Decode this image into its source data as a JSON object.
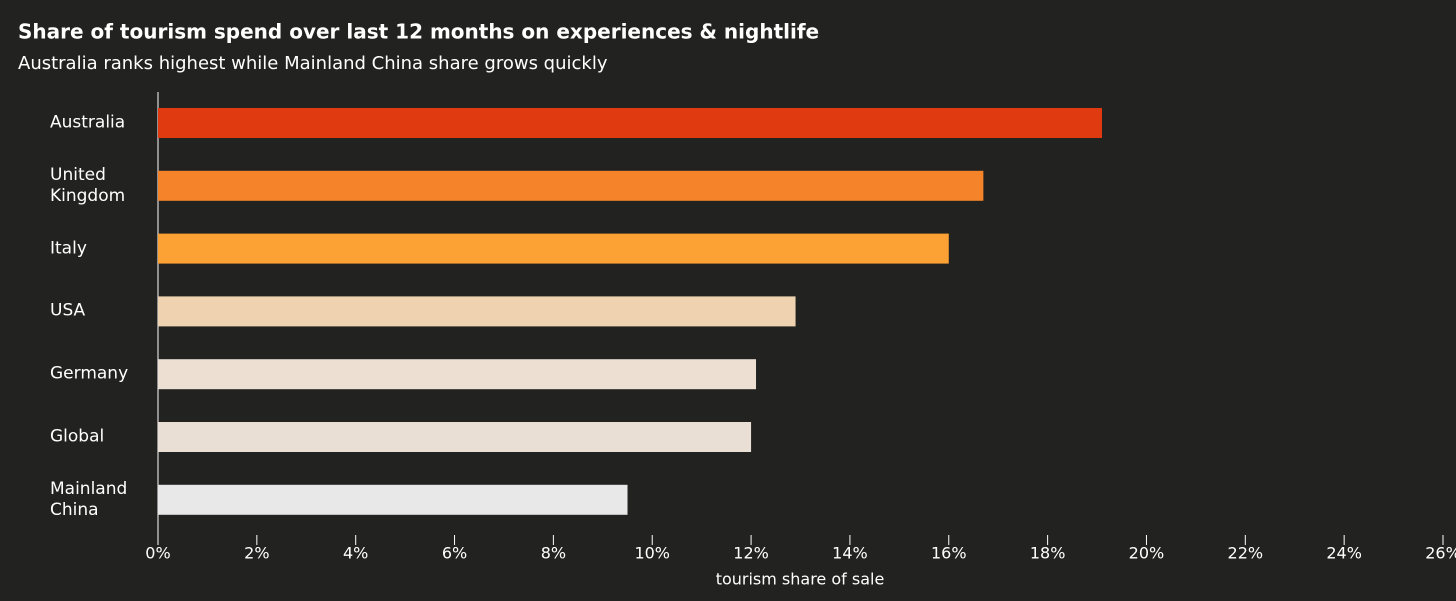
{
  "chart_data": {
    "type": "barh",
    "title": "Share of tourism spend over last 12 months on experiences & nightlife",
    "subtitle": "Australia ranks highest while Mainland China share grows quickly",
    "x_label": "tourism share of sale",
    "categories": [
      "Australia",
      "United Kingdom",
      "Italy",
      "USA",
      "Germany",
      "Global",
      "Mainland China"
    ],
    "values": [
      19.1,
      16.7,
      16.0,
      12.9,
      12.1,
      12.0,
      9.5
    ],
    "colors": [
      "#e03a10",
      "#f4832a",
      "#fca134",
      "#efd3b0",
      "#ede0d3",
      "#eadfd5",
      "#e8e8e8"
    ],
    "xlim": [
      0,
      26
    ],
    "xticks": [
      {
        "value": 0,
        "label": "0%"
      },
      {
        "value": 2,
        "label": "2%"
      },
      {
        "value": 4,
        "label": "4%"
      },
      {
        "value": 6,
        "label": "6%"
      },
      {
        "value": 8,
        "label": "8%"
      },
      {
        "value": 10,
        "label": "10%"
      },
      {
        "value": 12,
        "label": "12%"
      },
      {
        "value": 14,
        "label": "14%"
      },
      {
        "value": 16,
        "label": "16%"
      },
      {
        "value": 18,
        "label": "18%"
      },
      {
        "value": 20,
        "label": "20%"
      },
      {
        "value": 22,
        "label": "22%"
      },
      {
        "value": 24,
        "label": "24%"
      },
      {
        "value": 26,
        "label": "26%"
      }
    ],
    "grid": false
  }
}
